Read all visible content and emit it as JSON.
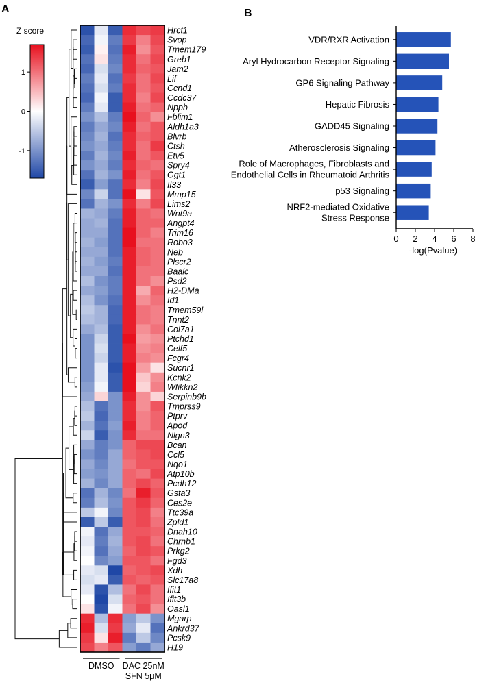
{
  "panel_a_label": "A",
  "panel_b_label": "B",
  "colorbar": {
    "title": "Z score",
    "ticks": [
      {
        "value": 1,
        "label": "1"
      },
      {
        "value": 0,
        "label": "0"
      },
      {
        "value": -1,
        "label": "-1"
      }
    ],
    "range": [
      -1.7,
      1.7
    ],
    "colors": {
      "low": "#1f47a6",
      "mid": "#ffffff",
      "high": "#e8101e"
    }
  },
  "chart_data": [
    {
      "type": "heatmap",
      "title": "",
      "xlabel": "",
      "ylabel": "",
      "groups": [
        {
          "name": "DMSO",
          "columns": 3
        },
        {
          "name": "DAC 25nM",
          "name2": "SFN 5μM",
          "columns": 3
        }
      ],
      "genes": [
        "Hrct1",
        "Svop",
        "Tmem179",
        "Greb1",
        "Jam2",
        "Lif",
        "Ccnd1",
        "Ccdc37",
        "Nppb",
        "Fblim1",
        "Aldh1a3",
        "Blvrb",
        "Ctsh",
        "Etv5",
        "Spry4",
        "Ggt1",
        "Il33",
        "Mmp15",
        "Lims2",
        "Wnt9a",
        "Angpt4",
        "Trim16",
        "Robo3",
        "Neb",
        "Plscr2",
        "Baalc",
        "Psd2",
        "H2-DMa",
        "Id1",
        "Tmem59l",
        "Tnnt2",
        "Col7a1",
        "Ptchd1",
        "Celf5",
        "Fcgr4",
        "Sucnr1",
        "Kcnk2",
        "Wfikkn2",
        "Serpinb9b",
        "Tmprss9",
        "Ptprv",
        "Apod",
        "Nlgn3",
        "Bcan",
        "Ccl5",
        "Nqo1",
        "Atp10b",
        "Pcdh12",
        "Gsta3",
        "Ces2e",
        "Ttc39a",
        "Zpld1",
        "Dnah10",
        "Chrnb1",
        "Prkg2",
        "Fgd3",
        "Xdh",
        "Slc17a8",
        "Ifit1",
        "Ifit3b",
        "Oasl1",
        "Mgarp",
        "Ankrd37",
        "Pcsk9",
        "H19"
      ],
      "values": [
        [
          -1.6,
          -0.2,
          -1.5,
          1.5,
          1.3,
          1.4
        ],
        [
          -1.4,
          -0.1,
          -1.2,
          1.4,
          0.9,
          1.3
        ],
        [
          -1.5,
          0.1,
          -1.3,
          1.6,
          0.8,
          1.2
        ],
        [
          -1.3,
          0.2,
          -1.2,
          1.5,
          1.0,
          1.3
        ],
        [
          -1.4,
          -0.3,
          -1.1,
          1.5,
          1.1,
          1.2
        ],
        [
          -1.2,
          -0.2,
          -1.3,
          1.4,
          1.0,
          1.3
        ],
        [
          -1.3,
          -0.3,
          -1.2,
          1.5,
          1.0,
          1.2
        ],
        [
          -1.4,
          -0.1,
          -1.5,
          1.5,
          0.9,
          1.3
        ],
        [
          -1.2,
          -0.2,
          -1.5,
          1.6,
          1.0,
          1.1
        ],
        [
          -1.0,
          -0.6,
          -1.2,
          1.7,
          1.1,
          0.8
        ],
        [
          -1.2,
          -0.8,
          -1.1,
          1.6,
          1.0,
          1.2
        ],
        [
          -1.1,
          -0.7,
          -1.3,
          1.5,
          1.1,
          1.2
        ],
        [
          -1.0,
          -0.8,
          -1.2,
          1.5,
          1.0,
          1.4
        ],
        [
          -1.2,
          -0.7,
          -1.1,
          1.6,
          1.0,
          1.2
        ],
        [
          -1.0,
          -0.8,
          -1.2,
          1.5,
          1.1,
          1.0
        ],
        [
          -1.3,
          -0.7,
          -1.0,
          1.6,
          1.0,
          1.2
        ],
        [
          -1.5,
          -0.9,
          -1.3,
          1.5,
          0.9,
          1.3
        ],
        [
          -1.1,
          -0.4,
          -1.3,
          1.7,
          0.2,
          1.2
        ],
        [
          -1.3,
          -0.7,
          -1.0,
          1.5,
          0.9,
          1.3
        ],
        [
          -0.7,
          -0.8,
          -1.2,
          1.6,
          1.1,
          1.0
        ],
        [
          -0.8,
          -0.7,
          -1.3,
          1.6,
          1.1,
          1.1
        ],
        [
          -0.8,
          -0.8,
          -1.3,
          1.7,
          1.1,
          0.9
        ],
        [
          -0.7,
          -0.9,
          -1.3,
          1.7,
          1.0,
          1.0
        ],
        [
          -0.8,
          -0.8,
          -1.3,
          1.6,
          1.1,
          1.0
        ],
        [
          -0.7,
          -0.9,
          -1.2,
          1.6,
          1.1,
          1.0
        ],
        [
          -0.8,
          -0.8,
          -1.3,
          1.6,
          1.0,
          1.0
        ],
        [
          -0.6,
          -1.0,
          -1.2,
          1.6,
          1.0,
          0.8
        ],
        [
          -0.8,
          -0.9,
          -1.2,
          1.6,
          0.6,
          1.1
        ],
        [
          -0.6,
          -1.0,
          -1.3,
          1.6,
          0.8,
          1.0
        ],
        [
          -0.5,
          -0.7,
          -1.4,
          1.6,
          1.0,
          0.9
        ],
        [
          -0.6,
          -0.7,
          -1.4,
          1.6,
          1.0,
          0.9
        ],
        [
          -0.8,
          -0.6,
          -1.5,
          1.6,
          0.8,
          1.0
        ],
        [
          -1.0,
          -0.4,
          -1.5,
          1.7,
          0.7,
          0.8
        ],
        [
          -1.0,
          -0.3,
          -1.5,
          1.6,
          0.8,
          0.9
        ],
        [
          -1.0,
          -0.4,
          -1.5,
          1.6,
          0.9,
          0.8
        ],
        [
          -1.0,
          -0.2,
          -1.6,
          1.7,
          0.7,
          0.2
        ],
        [
          -1.0,
          -0.2,
          -1.5,
          1.7,
          0.4,
          0.8
        ],
        [
          -0.9,
          -0.1,
          -1.5,
          1.7,
          0.3,
          0.9
        ],
        [
          -0.8,
          0.3,
          -1.0,
          1.6,
          0.8,
          0.3
        ],
        [
          -0.6,
          -1.3,
          -1.0,
          1.5,
          0.8,
          1.2
        ],
        [
          -0.5,
          -1.4,
          -1.0,
          1.5,
          0.9,
          1.1
        ],
        [
          -0.7,
          -1.3,
          -0.9,
          1.6,
          0.9,
          1.1
        ],
        [
          -0.4,
          -1.5,
          -1.0,
          1.5,
          1.0,
          1.0
        ],
        [
          -0.8,
          -1.2,
          -1.0,
          1.1,
          1.3,
          1.3
        ],
        [
          -1.0,
          -1.2,
          -0.8,
          1.1,
          1.2,
          1.3
        ],
        [
          -0.8,
          -1.1,
          -0.8,
          1.0,
          1.2,
          1.2
        ],
        [
          -0.9,
          -1.0,
          -0.8,
          1.1,
          1.0,
          1.3
        ],
        [
          -0.7,
          -1.1,
          -0.8,
          1.1,
          1.3,
          1.1
        ],
        [
          -1.3,
          -0.7,
          -1.1,
          1.0,
          1.6,
          1.2
        ],
        [
          -1.2,
          -0.6,
          -1.0,
          1.2,
          1.4,
          1.1
        ],
        [
          -0.5,
          -0.1,
          -1.1,
          1.2,
          1.3,
          0.9
        ],
        [
          -1.5,
          -0.5,
          -1.5,
          1.2,
          1.3,
          1.0
        ],
        [
          -0.1,
          -1.3,
          -0.8,
          1.2,
          1.2,
          1.1
        ],
        [
          -0.2,
          -1.2,
          -0.7,
          1.2,
          1.3,
          1.0
        ],
        [
          -0.1,
          -1.3,
          -0.8,
          1.1,
          1.3,
          1.2
        ],
        [
          0.0,
          -1.1,
          -0.9,
          1.2,
          1.2,
          1.0
        ],
        [
          -0.2,
          -0.3,
          -1.7,
          1.1,
          1.2,
          1.3
        ],
        [
          -0.3,
          -0.2,
          -1.5,
          1.2,
          1.1,
          1.2
        ],
        [
          -0.2,
          -1.6,
          -0.6,
          1.0,
          1.3,
          1.0
        ],
        [
          0.0,
          -1.7,
          -0.3,
          1.1,
          1.2,
          1.0
        ],
        [
          0.2,
          -1.6,
          -0.1,
          1.0,
          1.3,
          0.8
        ],
        [
          1.5,
          -0.6,
          1.5,
          -0.9,
          -0.5,
          -1.0
        ],
        [
          1.6,
          -0.3,
          1.4,
          -0.8,
          -0.2,
          -1.3
        ],
        [
          1.4,
          0.2,
          1.6,
          -1.2,
          -0.5,
          -1.1
        ],
        [
          1.3,
          0.9,
          1.2,
          -0.9,
          -1.2,
          -0.8
        ]
      ]
    },
    {
      "type": "bar",
      "orientation": "horizontal",
      "title": "",
      "xlabel": "-log(Pvalue)",
      "ylabel": "",
      "xlim": [
        0,
        8
      ],
      "xticks": [
        "0",
        "2",
        "4",
        "6",
        "8"
      ],
      "categories": [
        [
          "VDR/RXR Activation"
        ],
        [
          "Aryl Hydrocarbon Receptor Signaling"
        ],
        [
          "GP6 Signaling Pathway"
        ],
        [
          "Hepatic Fibrosis"
        ],
        [
          "GADD45 Signaling"
        ],
        [
          "Atherosclerosis Signaling"
        ],
        [
          "Role of Macrophages, Fibroblasts and",
          "Endothelial Cells in Rheumatoid Arthritis"
        ],
        [
          "p53 Signaling"
        ],
        [
          "NRF2-mediated Oxidative",
          "Stress Response"
        ]
      ],
      "values": [
        5.7,
        5.5,
        4.8,
        4.4,
        4.3,
        4.1,
        3.7,
        3.6,
        3.4
      ],
      "bar_color": "#2553b8"
    }
  ]
}
